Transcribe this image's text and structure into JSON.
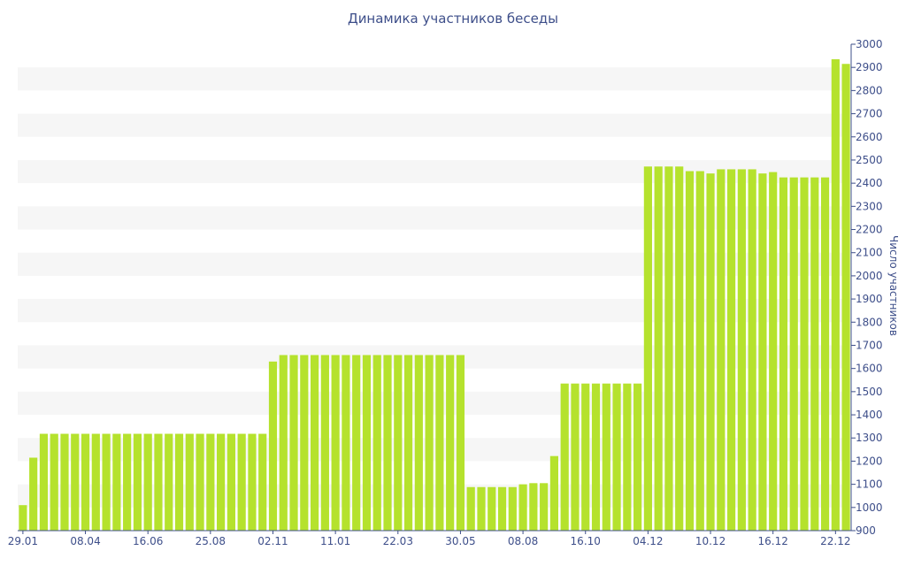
{
  "chart_data": {
    "type": "bar",
    "title": "Динамика участников беседы",
    "xlabel": "",
    "ylabel": "Число участников",
    "ylim": [
      900,
      3000
    ],
    "y_ticks": [
      900,
      1000,
      1100,
      1200,
      1300,
      1400,
      1500,
      1600,
      1700,
      1800,
      1900,
      2000,
      2100,
      2200,
      2300,
      2400,
      2500,
      2600,
      2700,
      2800,
      2900,
      3000
    ],
    "x_tick_labels": [
      {
        "index": 0,
        "label": "29.01"
      },
      {
        "index": 6,
        "label": "08.04"
      },
      {
        "index": 12,
        "label": "16.06"
      },
      {
        "index": 18,
        "label": "25.08"
      },
      {
        "index": 24,
        "label": "02.11"
      },
      {
        "index": 30,
        "label": "11.01"
      },
      {
        "index": 36,
        "label": "22.03"
      },
      {
        "index": 42,
        "label": "30.05"
      },
      {
        "index": 48,
        "label": "08.08"
      },
      {
        "index": 54,
        "label": "16.10"
      },
      {
        "index": 60,
        "label": "04.12"
      },
      {
        "index": 66,
        "label": "10.12"
      },
      {
        "index": 72,
        "label": "16.12"
      },
      {
        "index": 78,
        "label": "22.12"
      }
    ],
    "values": [
      1010,
      1215,
      1318,
      1318,
      1318,
      1318,
      1318,
      1318,
      1318,
      1318,
      1318,
      1318,
      1318,
      1318,
      1318,
      1318,
      1318,
      1318,
      1318,
      1318,
      1318,
      1318,
      1318,
      1318,
      1630,
      1658,
      1658,
      1658,
      1658,
      1658,
      1658,
      1658,
      1658,
      1658,
      1658,
      1658,
      1658,
      1658,
      1658,
      1658,
      1658,
      1658,
      1658,
      1088,
      1088,
      1088,
      1088,
      1088,
      1100,
      1105,
      1105,
      1222,
      1535,
      1535,
      1535,
      1535,
      1535,
      1535,
      1535,
      1535,
      2472,
      2472,
      2472,
      2472,
      2452,
      2452,
      2442,
      2460,
      2460,
      2460,
      2460,
      2442,
      2448,
      2425,
      2425,
      2425,
      2425,
      2425,
      2935,
      2915
    ],
    "bar_color": "#b5e22d",
    "band_color": "#f6f6f6",
    "text_color": "#3e4f8a",
    "axis_color": "#3e4f8a",
    "grid": "alternating-bands",
    "y_axis_position": "right",
    "legend": "none"
  }
}
